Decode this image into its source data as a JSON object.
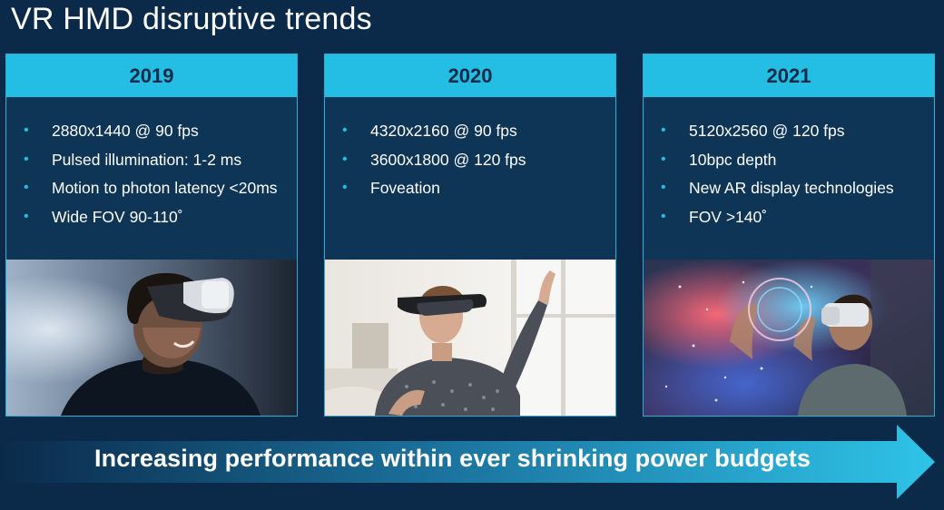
{
  "title": "VR HMD disruptive trends",
  "colors": {
    "background": "#0b2a4a",
    "card": "#0e3456",
    "accent": "#24bde3"
  },
  "cards": [
    {
      "year": "2019",
      "bullets": [
        "2880x1440 @ 90 fps",
        "Pulsed illumination: 1-2 ms",
        "Motion to photon latency <20ms",
        "Wide FOV 90-110˚"
      ],
      "image": "woman-wearing-vr-headset-photo"
    },
    {
      "year": "2020",
      "bullets": [
        "4320x2160 @ 90 fps",
        "3600x1800 @ 120 fps",
        "Foveation"
      ],
      "image": "woman-wearing-ar-headset-photo"
    },
    {
      "year": "2021",
      "bullets": [
        "5120x2560 @ 120 fps",
        "10bpc depth",
        "New AR display technologies",
        "FOV >140˚"
      ],
      "image": "man-wearing-vr-headset-with-light-effects-photo"
    }
  ],
  "banner": "Increasing performance within ever shrinking power budgets"
}
